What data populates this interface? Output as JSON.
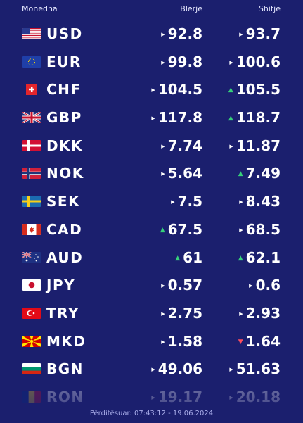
{
  "header": {
    "currency": "Monedha",
    "buy": "Blerje",
    "sell": "Shitje"
  },
  "rows": [
    {
      "code": "USD",
      "flag": "us-flag-icon",
      "buy": "92.8",
      "buy_trend": "same",
      "sell": "93.7",
      "sell_trend": "same"
    },
    {
      "code": "EUR",
      "flag": "eu-flag-icon",
      "buy": "99.8",
      "buy_trend": "same",
      "sell": "100.6",
      "sell_trend": "same"
    },
    {
      "code": "CHF",
      "flag": "ch-flag-icon",
      "buy": "104.5",
      "buy_trend": "same",
      "sell": "105.5",
      "sell_trend": "up"
    },
    {
      "code": "GBP",
      "flag": "gb-flag-icon",
      "buy": "117.8",
      "buy_trend": "same",
      "sell": "118.7",
      "sell_trend": "up"
    },
    {
      "code": "DKK",
      "flag": "dk-flag-icon",
      "buy": "7.74",
      "buy_trend": "same",
      "sell": "11.87",
      "sell_trend": "same"
    },
    {
      "code": "NOK",
      "flag": "no-flag-icon",
      "buy": "5.64",
      "buy_trend": "same",
      "sell": "7.49",
      "sell_trend": "up"
    },
    {
      "code": "SEK",
      "flag": "se-flag-icon",
      "buy": "7.5",
      "buy_trend": "same",
      "sell": "8.43",
      "sell_trend": "same"
    },
    {
      "code": "CAD",
      "flag": "ca-flag-icon",
      "buy": "67.5",
      "buy_trend": "up",
      "sell": "68.5",
      "sell_trend": "same"
    },
    {
      "code": "AUD",
      "flag": "au-flag-icon",
      "buy": "61",
      "buy_trend": "up",
      "sell": "62.1",
      "sell_trend": "up"
    },
    {
      "code": "JPY",
      "flag": "jp-flag-icon",
      "buy": "0.57",
      "buy_trend": "same",
      "sell": "0.6",
      "sell_trend": "same"
    },
    {
      "code": "TRY",
      "flag": "tr-flag-icon",
      "buy": "2.75",
      "buy_trend": "same",
      "sell": "2.93",
      "sell_trend": "same"
    },
    {
      "code": "MKD",
      "flag": "mk-flag-icon",
      "buy": "1.58",
      "buy_trend": "same",
      "sell": "1.64",
      "sell_trend": "down"
    },
    {
      "code": "BGN",
      "flag": "bg-flag-icon",
      "buy": "49.06",
      "buy_trend": "same",
      "sell": "51.63",
      "sell_trend": "same"
    },
    {
      "code": "RON",
      "flag": "ro-flag-icon",
      "buy": "19.17",
      "buy_trend": "same",
      "sell": "20.18",
      "sell_trend": "same"
    }
  ],
  "footer": "Përditësuar: 07:43:12 - 19.06.2024",
  "colors": {
    "background": "#1b1f6e",
    "up": "#36d07a",
    "down": "#ff4d5e"
  }
}
